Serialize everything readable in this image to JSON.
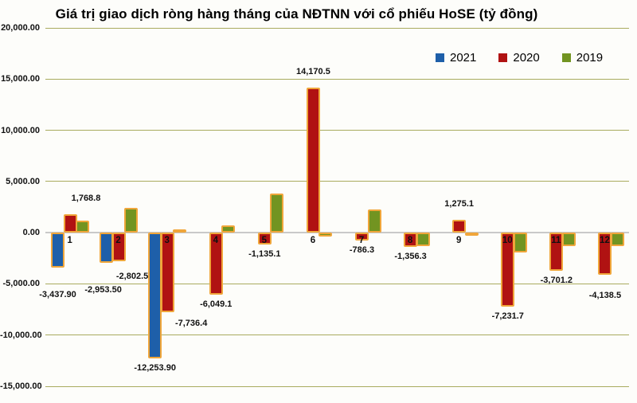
{
  "title": "Giá trị giao dịch ròng hàng tháng của NĐTNN với cổ phiếu HoSE (tỷ đồng)",
  "colors": {
    "series_2021": "#1E5FA9",
    "series_2020": "#B01212",
    "series_2019": "#729421",
    "bar_outline": "#F0A63A",
    "gridline": "#A9AB5E",
    "zero_line": "#C9C9C9",
    "background": "#FDFDFA",
    "text": "#111111"
  },
  "chart_data": {
    "type": "bar",
    "title": "Giá trị giao dịch ròng hàng tháng của NĐTNN với cổ phiếu HoSE (tỷ đồng)",
    "categories": [
      "1",
      "2",
      "3",
      "4",
      "5",
      "6",
      "7",
      "8",
      "9",
      "10",
      "11",
      "12"
    ],
    "xlabel": "",
    "ylabel": "",
    "ylim": [
      -15000,
      20000
    ],
    "grid": true,
    "legend_position": "top-right",
    "y_axis": {
      "tick_labels": [
        "20,000.00",
        "15,000.00",
        "10,000.00",
        "5,000.00",
        "0.00",
        "-5,000.00",
        "-10,000.00",
        "-15,000.00"
      ],
      "tick_values": [
        20000,
        15000,
        10000,
        5000,
        0,
        -5000,
        -10000,
        -15000
      ]
    },
    "series": [
      {
        "name": "2021",
        "color_key": "series_2021",
        "values": [
          -3437.9,
          -2953.5,
          -12253.9,
          null,
          null,
          null,
          null,
          null,
          null,
          null,
          null,
          null
        ],
        "labels": [
          "-3,437.90",
          "-2,953.50",
          "-12,253.90",
          null,
          null,
          null,
          null,
          null,
          null,
          null,
          null,
          null
        ]
      },
      {
        "name": "2020",
        "color_key": "series_2020",
        "values": [
          1768.8,
          -2802.5,
          -7736.4,
          -6049.1,
          -1135.1,
          14170.5,
          -786.3,
          -1356.3,
          1275.1,
          -7231.7,
          -3701.2,
          -4138.5
        ],
        "labels": [
          "1,768.8",
          "-2,802.5",
          "-7,736.4",
          "-6,049.1",
          "-1,135.1",
          "14,170.5",
          "-786.3",
          "-1,356.3",
          "1,275.1",
          "-7,231.7",
          "-3,701.2",
          "-4,138.5"
        ]
      },
      {
        "name": "2019",
        "color_key": "series_2019",
        "values": [
          1150,
          2400,
          350,
          700,
          3800,
          -400,
          2300,
          -1300,
          -250,
          -1900,
          -1300,
          -1350
        ],
        "labels": [
          null,
          null,
          null,
          null,
          null,
          null,
          null,
          null,
          null,
          null,
          null,
          null
        ]
      }
    ]
  }
}
